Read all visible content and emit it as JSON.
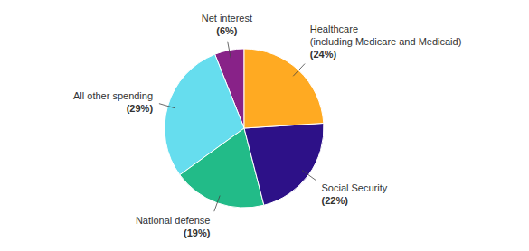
{
  "chart_data": {
    "type": "pie",
    "categories": [
      "Net interest",
      "All other spending",
      "National defense",
      "Social Security",
      "Healthcare\n(including Medicare and Medicaid)"
    ],
    "values": [
      6,
      29,
      19,
      22,
      24
    ],
    "value_labels": [
      "(6%)",
      "(29%)",
      "(19%)",
      "(22%)",
      "(24%)"
    ],
    "colors": [
      "#882288",
      "#66DDEE",
      "#22BB88",
      "#2D1188",
      "#FFAA22"
    ],
    "data_labels": true
  }
}
